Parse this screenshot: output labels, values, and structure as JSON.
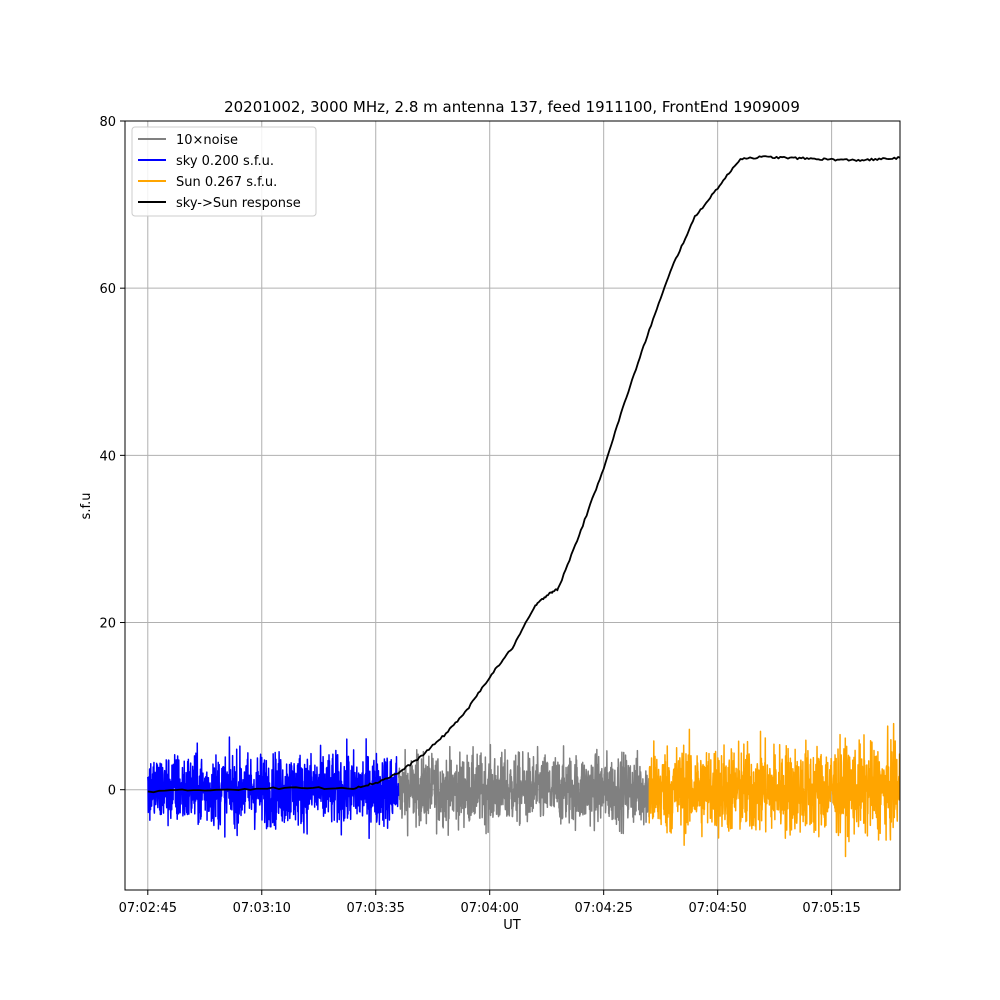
{
  "chart_data": {
    "type": "line",
    "title": "20201002, 3000 MHz, 2.8 m antenna 137, feed 1911100, FrontEnd 1909009",
    "xlabel": "UT",
    "ylabel": "s.f.u",
    "xlim": [
      "07:02:40",
      "07:05:30"
    ],
    "ylim": [
      -12,
      80
    ],
    "x_ticks": [
      "07:02:45",
      "07:03:10",
      "07:03:35",
      "07:04:00",
      "07:04:25",
      "07:04:50",
      "07:05:15"
    ],
    "y_ticks": [
      0,
      20,
      40,
      60,
      80
    ],
    "grid": true,
    "legend_position": "upper-left",
    "series": [
      {
        "name": "10×noise",
        "color": "#808080",
        "kind": "noise",
        "x_range": [
          "07:03:40",
          "07:04:35"
        ],
        "y_center": 0.0,
        "y_approx_range": [
          -7.5,
          6.0
        ]
      },
      {
        "name": "sky 0.200 s.f.u.",
        "color": "#0000ff",
        "kind": "noise",
        "x_range": [
          "07:02:45",
          "07:03:40"
        ],
        "y_center": 0.0,
        "y_approx_range": [
          -7.7,
          7.3
        ]
      },
      {
        "name": "Sun 0.267 s.f.u.",
        "color": "#ffa500",
        "kind": "noise",
        "x_range": [
          "07:04:35",
          "07:05:30"
        ],
        "y_center": 0.0,
        "y_approx_range": [
          -8.0,
          9.5
        ]
      },
      {
        "name": "sky->Sun response",
        "color": "#000000",
        "kind": "line",
        "x": [
          "07:02:45",
          "07:03:00",
          "07:03:15",
          "07:03:30",
          "07:03:35",
          "07:03:40",
          "07:03:45",
          "07:03:50",
          "07:03:55",
          "07:04:00",
          "07:04:05",
          "07:04:10",
          "07:04:13",
          "07:04:15",
          "07:04:20",
          "07:04:25",
          "07:04:30",
          "07:04:35",
          "07:04:40",
          "07:04:45",
          "07:04:50",
          "07:04:55",
          "07:05:00",
          "07:05:05",
          "07:05:10",
          "07:05:15",
          "07:05:20",
          "07:05:25",
          "07:05:30"
        ],
        "y": [
          -0.2,
          0.0,
          0.2,
          0.2,
          0.8,
          2.0,
          4.0,
          6.5,
          9.5,
          13.5,
          17.0,
          22.0,
          23.5,
          24.0,
          31.0,
          38.5,
          47.0,
          55.0,
          62.5,
          68.5,
          72.0,
          75.5,
          75.7,
          75.6,
          75.5,
          75.4,
          75.3,
          75.4,
          75.6
        ]
      }
    ]
  }
}
